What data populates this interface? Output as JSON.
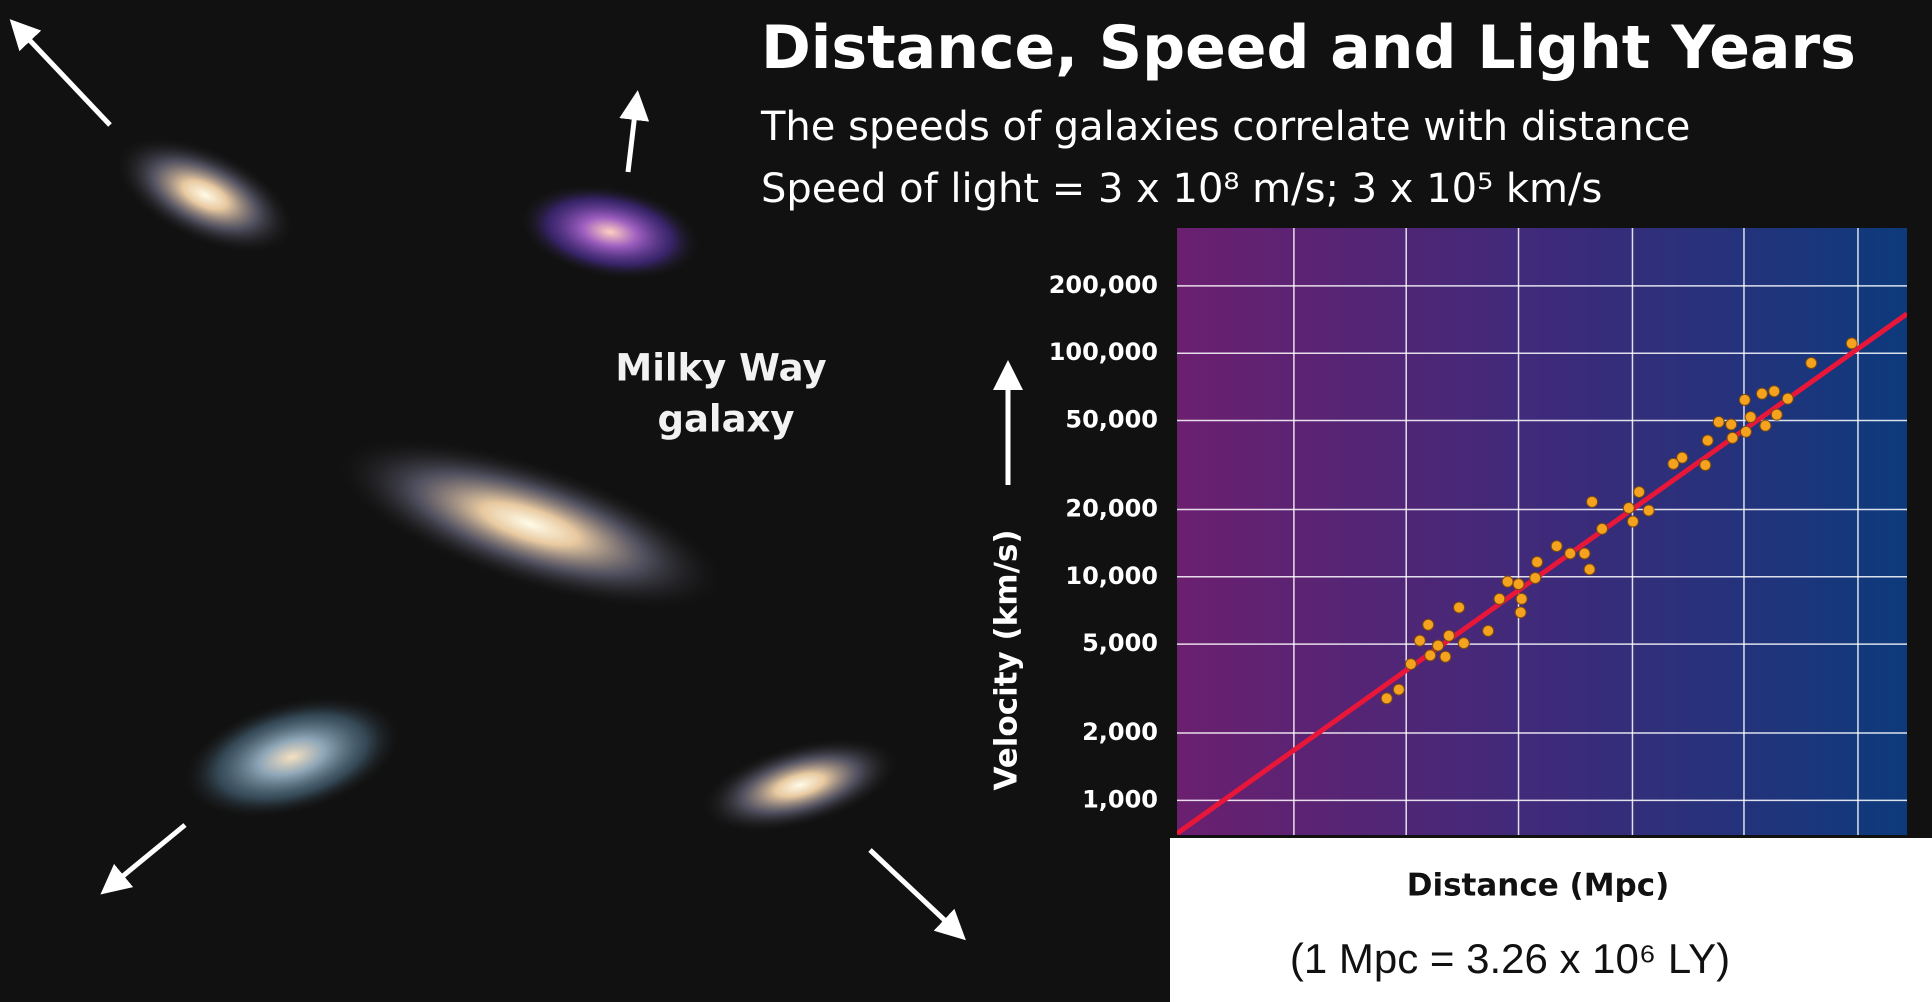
{
  "slide": {
    "title": "Distance, Speed and Light Years",
    "subtitle_lines": [
      "The speeds of galaxies correlate with distance",
      "Speed of light = 3 x 10⁸ m/s; 3 x 10⁵ km/s"
    ],
    "illustration_label": [
      "Milky Way",
      "galaxy"
    ],
    "footnote": "(1 Mpc = 3.26 x 10⁶ LY)"
  },
  "chart_data": {
    "type": "scatter",
    "x_label": "Distance (Mpc)",
    "y_label": "Velocity (km/s)",
    "xscale": "log",
    "yscale": "log",
    "xlim": [
      10.6,
      2250
    ],
    "ylim": [
      700,
      363000
    ],
    "xticks": [
      25,
      57,
      130,
      300,
      680,
      1570
    ],
    "yticks": [
      {
        "value": 1000,
        "label": "1,000"
      },
      {
        "value": 2000,
        "label": "2,000"
      },
      {
        "value": 5000,
        "label": "5,000"
      },
      {
        "value": 10000,
        "label": "10,000"
      },
      {
        "value": 20000,
        "label": "20,000"
      },
      {
        "value": 50000,
        "label": "50,000"
      },
      {
        "value": 100000,
        "label": "100,000"
      },
      {
        "value": 200000,
        "label": "200,000"
      }
    ],
    "grid": true,
    "color": "#f5a31e",
    "x": [
      49.4,
      54,
      59,
      63,
      67,
      68,
      72,
      76,
      78,
      84,
      87,
      104,
      113,
      120,
      130,
      132,
      133,
      147,
      149,
      172,
      190,
      211,
      219,
      223,
      240,
      292,
      301,
      315,
      338,
      405,
      432,
      512,
      521,
      565,
      619,
      625,
      684,
      690,
      714,
      776,
      796,
      849,
      865,
      938,
      1114,
      1500
    ],
    "values": [
      2860,
      3130,
      4070,
      5180,
      6100,
      4450,
      4920,
      4390,
      5450,
      7290,
      5050,
      5730,
      7960,
      9510,
      9270,
      6930,
      7960,
      9880,
      11640,
      13720,
      12710,
      12710,
      10790,
      21640,
      16380,
      20300,
      17660,
      23940,
      19800,
      32000,
      34100,
      31600,
      40700,
      49200,
      48000,
      41800,
      61800,
      44500,
      51800,
      65900,
      47400,
      67600,
      53100,
      62600,
      90400,
      110600
    ],
    "fit_line": {
      "x": [
        10.6,
        2250
      ],
      "values": [
        711,
        150000
      ],
      "color": "#e8173a"
    }
  }
}
